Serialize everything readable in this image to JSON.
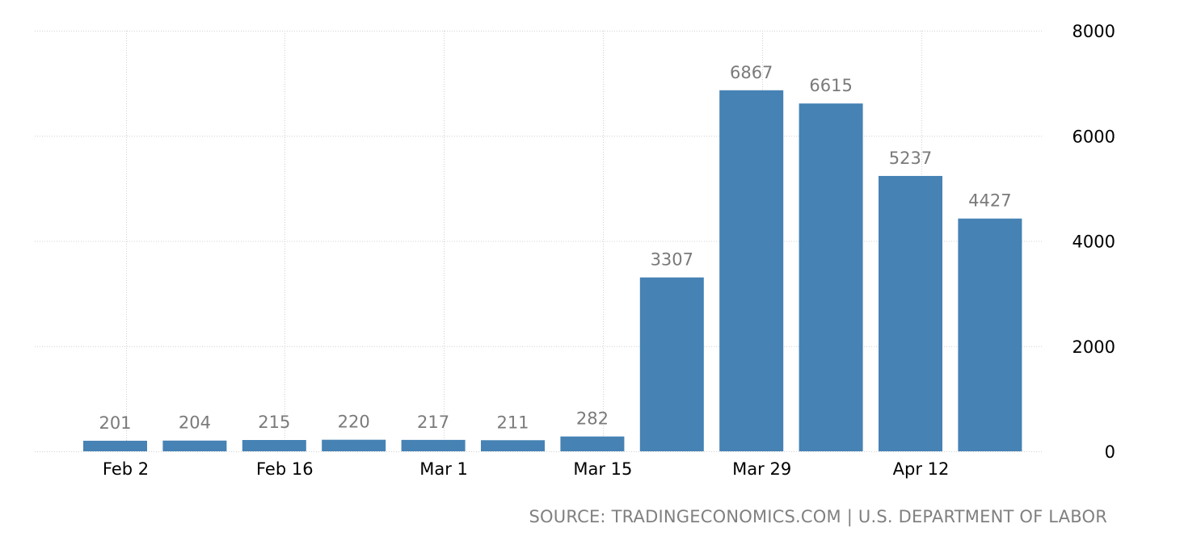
{
  "source": "SOURCE: TRADINGECONOMICS.COM | U.S. DEPARTMENT OF LABOR",
  "colors": {
    "bar": "#4682b4",
    "grid": "#d0d0d0",
    "data_label": "#7a7a7a",
    "axis_text": "#000000",
    "source_text": "#808080"
  },
  "chart_data": {
    "type": "bar",
    "title": "",
    "xlabel": "",
    "ylabel": "",
    "ylim": [
      0,
      8000
    ],
    "y_ticks": [
      0,
      2000,
      4000,
      6000,
      8000
    ],
    "x_tick_labels": [
      "Feb 2",
      "Feb 16",
      "Mar 1",
      "Mar 15",
      "Mar 29",
      "Apr 12"
    ],
    "x_tick_indices": [
      0,
      2,
      4,
      6,
      8,
      10
    ],
    "grid": true,
    "legend": "none",
    "y_axis_side": "right",
    "series": [
      {
        "values": [
          201,
          204,
          215,
          220,
          217,
          211,
          282,
          3307,
          6867,
          6615,
          5237,
          4427
        ]
      }
    ]
  }
}
